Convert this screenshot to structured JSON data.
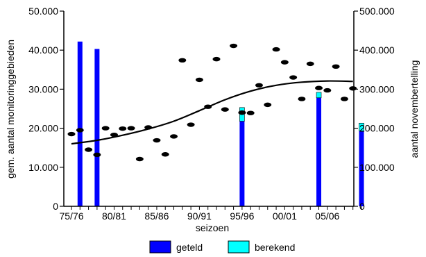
{
  "chart_data": {
    "type": "bar",
    "title": "",
    "xlabel": "seizoen",
    "ylabel_left": "gem. aantal monitoringgebieden",
    "ylabel_right": "aantal novembertelling",
    "x_categories": [
      "75/76",
      "76/77",
      "77/78",
      "78/79",
      "79/80",
      "80/81",
      "81/82",
      "82/83",
      "83/84",
      "84/85",
      "85/86",
      "86/87",
      "87/88",
      "88/89",
      "89/90",
      "90/91",
      "91/92",
      "92/93",
      "93/94",
      "94/95",
      "95/96",
      "96/97",
      "97/98",
      "98/99",
      "99/00",
      "00/01",
      "01/02",
      "02/03",
      "03/04",
      "04/05",
      "05/06",
      "06/07",
      "07/08",
      "08/09",
      "09/10"
    ],
    "x_tick_labels": [
      "75/76",
      "80/81",
      "85/86",
      "90/91",
      "95/96",
      "00/01",
      "05/06"
    ],
    "left_axis": {
      "min": 0,
      "max": 50000,
      "ticks": [
        "0",
        "10.000",
        "20.000",
        "30.000",
        "40.000",
        "50.000"
      ]
    },
    "right_axis": {
      "min": 0,
      "max": 500000,
      "ticks": [
        "0",
        "100.000",
        "200.000",
        "300.000",
        "400.000",
        "500.000"
      ]
    },
    "grid": false,
    "legend_position": "bottom",
    "series": [
      {
        "name": "geteld",
        "kind": "bar",
        "axis": "right",
        "color": "#0000ff",
        "points": [
          {
            "season": "76/77",
            "value": 422000
          },
          {
            "season": "78/79",
            "value": 403000
          },
          {
            "season": "95/96",
            "value": 218000
          },
          {
            "season": "04/05",
            "value": 278000
          },
          {
            "season": "09/10",
            "value": 193000
          }
        ]
      },
      {
        "name": "berekend",
        "kind": "bar-stack",
        "axis": "right",
        "color": "#00ffff",
        "points": [
          {
            "season": "76/77",
            "value": 0
          },
          {
            "season": "78/79",
            "value": 0
          },
          {
            "season": "95/96",
            "value": 35000
          },
          {
            "season": "04/05",
            "value": 14000
          },
          {
            "season": "09/10",
            "value": 20000
          }
        ]
      },
      {
        "kind": "scatter",
        "axis": "left",
        "color": "#000000",
        "points": [
          {
            "season": "75/76",
            "value": 18500
          },
          {
            "season": "76/77",
            "value": 19500
          },
          {
            "season": "77/78",
            "value": 14500
          },
          {
            "season": "78/79",
            "value": 13200
          },
          {
            "season": "79/80",
            "value": 20000
          },
          {
            "season": "80/81",
            "value": 18300
          },
          {
            "season": "81/82",
            "value": 19900
          },
          {
            "season": "82/83",
            "value": 20000
          },
          {
            "season": "83/84",
            "value": 12100
          },
          {
            "season": "84/85",
            "value": 20200
          },
          {
            "season": "85/86",
            "value": 16900
          },
          {
            "season": "86/87",
            "value": 13300
          },
          {
            "season": "87/88",
            "value": 17900
          },
          {
            "season": "88/89",
            "value": 37400
          },
          {
            "season": "89/90",
            "value": 20900
          },
          {
            "season": "90/91",
            "value": 32400
          },
          {
            "season": "91/92",
            "value": 25500
          },
          {
            "season": "92/93",
            "value": 37700
          },
          {
            "season": "93/94",
            "value": 24800
          },
          {
            "season": "94/95",
            "value": 41100
          },
          {
            "season": "95/96",
            "value": 24000
          },
          {
            "season": "96/97",
            "value": 23900
          },
          {
            "season": "97/98",
            "value": 31000
          },
          {
            "season": "98/99",
            "value": 26000
          },
          {
            "season": "99/00",
            "value": 40200
          },
          {
            "season": "00/01",
            "value": 36900
          },
          {
            "season": "01/02",
            "value": 33000
          },
          {
            "season": "02/03",
            "value": 27500
          },
          {
            "season": "03/04",
            "value": 36500
          },
          {
            "season": "04/05",
            "value": 30300
          },
          {
            "season": "05/06",
            "value": 29700
          },
          {
            "season": "06/07",
            "value": 35800
          },
          {
            "season": "07/08",
            "value": 27500
          },
          {
            "season": "08/09",
            "value": 30200
          }
        ]
      },
      {
        "kind": "trend-line",
        "axis": "left",
        "color": "#000000",
        "points": [
          {
            "season": "75/76",
            "value": 16000
          },
          {
            "season": "78/79",
            "value": 16900
          },
          {
            "season": "81/82",
            "value": 18200
          },
          {
            "season": "84/85",
            "value": 19800
          },
          {
            "season": "87/88",
            "value": 21800
          },
          {
            "season": "90/91",
            "value": 24500
          },
          {
            "season": "93/94",
            "value": 27300
          },
          {
            "season": "96/97",
            "value": 29500
          },
          {
            "season": "99/00",
            "value": 31000
          },
          {
            "season": "02/03",
            "value": 31800
          },
          {
            "season": "05/06",
            "value": 32100
          },
          {
            "season": "08/09",
            "value": 32000
          }
        ]
      }
    ]
  }
}
